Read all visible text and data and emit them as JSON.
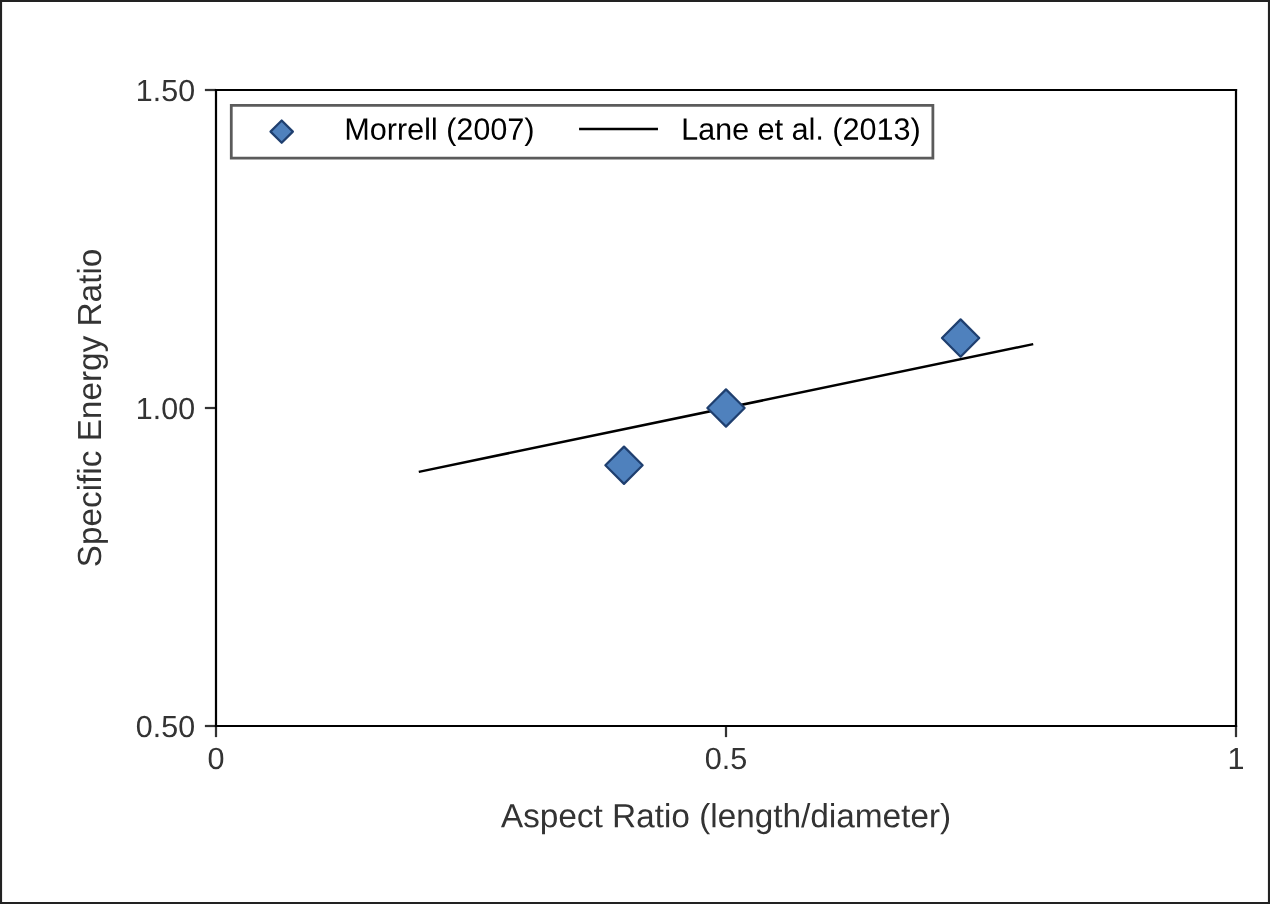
{
  "chart_data": {
    "type": "scatter",
    "xlabel": "Aspect Ratio (length/diameter)",
    "ylabel": "Specific Energy Ratio",
    "xlim": [
      0,
      1
    ],
    "xticks": [
      0,
      0.5,
      1
    ],
    "ylim": [
      0.5,
      1.5
    ],
    "yticks": [
      {
        "value": 0.5,
        "label": "0.50"
      },
      {
        "value": 1.0,
        "label": "1.00"
      },
      {
        "value": 1.5,
        "label": "1.50"
      }
    ],
    "legend": "top left",
    "grid": false,
    "series": [
      {
        "name": "Morrell (2007)",
        "marker": "diamond",
        "color": "#4f81bd",
        "x": [
          0.4,
          0.5,
          0.73
        ],
        "values": [
          0.91,
          1.0,
          1.11
        ]
      },
      {
        "name": "Lane et al. (2013)",
        "type": "line",
        "line_style": "solid",
        "color": "#000000",
        "x": [
          0.2,
          0.8
        ],
        "values": [
          0.9,
          1.1
        ]
      }
    ]
  }
}
